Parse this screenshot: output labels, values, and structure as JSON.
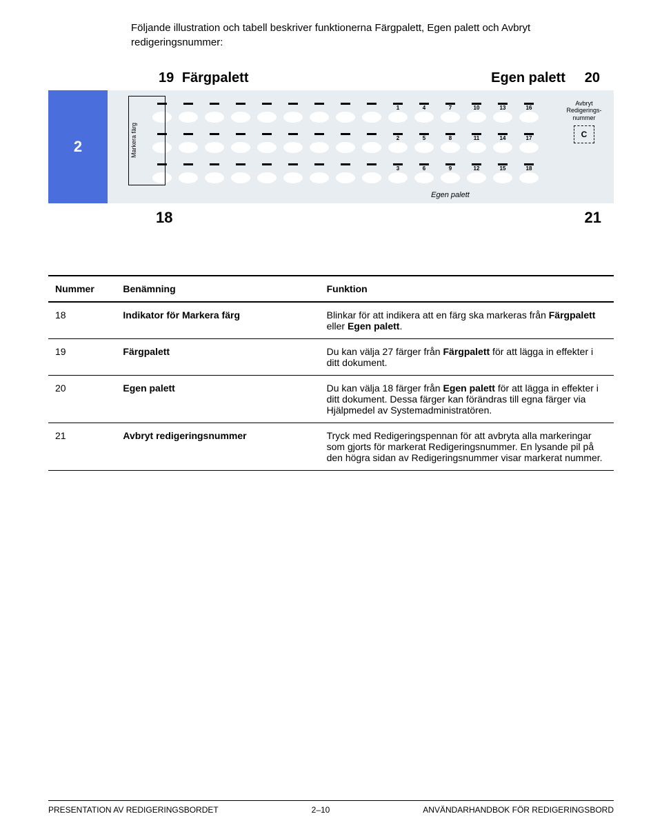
{
  "intro": "Följande illustration och tabell beskriver funktionerna Färgpalett, Egen palett och Avbryt redigeringsnummer:",
  "labels": {
    "n19": "19",
    "fargpalett": "Färgpalett",
    "egenpalett": "Egen palett",
    "n20": "20",
    "n18": "18",
    "n21": "21",
    "sidebox": "2",
    "markera": "Markera färg",
    "cancel_l1": "Avbryt",
    "cancel_l2": "Redigerings-",
    "cancel_l3": "nummer",
    "cancel_c": "C",
    "egen_sub": "Egen palett"
  },
  "palette": {
    "oval_bg": "#ffffff",
    "panel_bg": "#e8edf2",
    "blue": "#4a6fdc",
    "row1_nums": [
      "",
      "",
      "",
      "",
      "",
      "",
      "",
      "",
      "",
      "1",
      "4",
      "7",
      "10",
      "13",
      "16"
    ],
    "row2_nums": [
      "",
      "",
      "",
      "",
      "",
      "",
      "",
      "",
      "",
      "2",
      "5",
      "8",
      "11",
      "14",
      "17"
    ],
    "row3_nums": [
      "",
      "",
      "",
      "",
      "",
      "",
      "",
      "",
      "",
      "3",
      "6",
      "9",
      "12",
      "15",
      "18"
    ]
  },
  "table": {
    "headers": [
      "Nummer",
      "Benämning",
      "Funktion"
    ],
    "rows": [
      {
        "num": "18",
        "name": "Indikator för Markera färg",
        "desc": "Blinkar för att indikera att en färg ska markeras från Färgpalett eller Egen palett."
      },
      {
        "num": "19",
        "name": "Färgpalett",
        "desc": "Du kan välja 27 färger från Färgpalett för att lägga in effekter i ditt dokument."
      },
      {
        "num": "20",
        "name": "Egen palett",
        "desc": "Du kan välja 18 färger från Egen palett för att lägga in effekter i ditt dokument. Dessa färger kan förändras till egna färger via Hjälpmedel av Systemadministratören."
      },
      {
        "num": "21",
        "name": "Avbryt redigeringsnummer",
        "desc": "Tryck med Redigeringspennan för att avbryta alla markeringar som gjorts för markerat Redigeringsnummer. En lysande pil på den högra sidan av Redigeringsnummer visar markerat nummer."
      }
    ]
  },
  "footer": {
    "left": "PRESENTATION AV REDIGERINGSBORDET",
    "center": "2–10",
    "right": "ANVÄNDARHANDBOK FÖR REDIGERINGSBORD"
  }
}
